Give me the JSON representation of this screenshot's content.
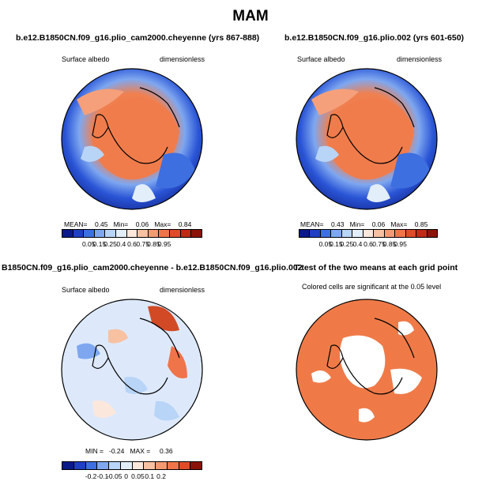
{
  "figure_title": "MAM",
  "panels": [
    {
      "title": "b.e12.B1850CN.f09_g16.plio_cam2000.cheyenne (yrs 867-888)",
      "left_label": "Surface albedo",
      "right_label": "dimensionless",
      "stats": "MEAN=    0.45   Min=    0.06   Max=    0.84",
      "colorbar_ticks": [
        "0.05",
        "0.15",
        "0.25",
        "0.4",
        "0.6",
        "0.75",
        "0.85",
        "0.95"
      ],
      "colorbar_colors": [
        "#0a1a8a",
        "#1f3fc4",
        "#3d6fe0",
        "#7ea7f0",
        "#b8d4f7",
        "#e3eefb",
        "#fbe7dc",
        "#f7c1a2",
        "#f39a73",
        "#ef744a",
        "#e04b28",
        "#c02a17",
        "#8a1208"
      ]
    },
    {
      "title": "b.e12.B1850CN.f09_g16.plio.002 (yrs 601-650)",
      "left_label": "Surface albedo",
      "right_label": "dimensionless",
      "stats": "MEAN=    0.43   Min=    0.06   Max=    0.85",
      "colorbar_ticks": [
        "0.05",
        "0.15",
        "0.25",
        "0.4",
        "0.6",
        "0.75",
        "0.85",
        "0.95"
      ],
      "colorbar_colors": [
        "#0a1a8a",
        "#1f3fc4",
        "#3d6fe0",
        "#7ea7f0",
        "#b8d4f7",
        "#e3eefb",
        "#fbe7dc",
        "#f7c1a2",
        "#f39a73",
        "#ef744a",
        "#e04b28",
        "#c02a17",
        "#8a1208"
      ]
    },
    {
      "title": "B1850CN.f09_g16.plio_cam2000.cheyenne - b.e12.B1850CN.f09_g16.plio.002",
      "left_label": "Surface albedo",
      "right_label": "dimensionless",
      "stats": "MIN =   -0.24   MAX =     0.36",
      "colorbar_ticks": [
        "-0.2",
        "-0.1",
        "-0.05",
        "0",
        "0.05",
        "0.1",
        "0.2"
      ],
      "colorbar_colors": [
        "#0a1a8a",
        "#1f3fc4",
        "#3d6fe0",
        "#7ea7f0",
        "#b8d4f7",
        "#e3eefb",
        "#fbe7dc",
        "#f7c1a2",
        "#f39a73",
        "#ef744a",
        "#e04b28",
        "#8a1208"
      ]
    },
    {
      "title": "T-test of the two means at each grid point",
      "note": "Colored cells are significant at the 0.05 level"
    }
  ]
}
